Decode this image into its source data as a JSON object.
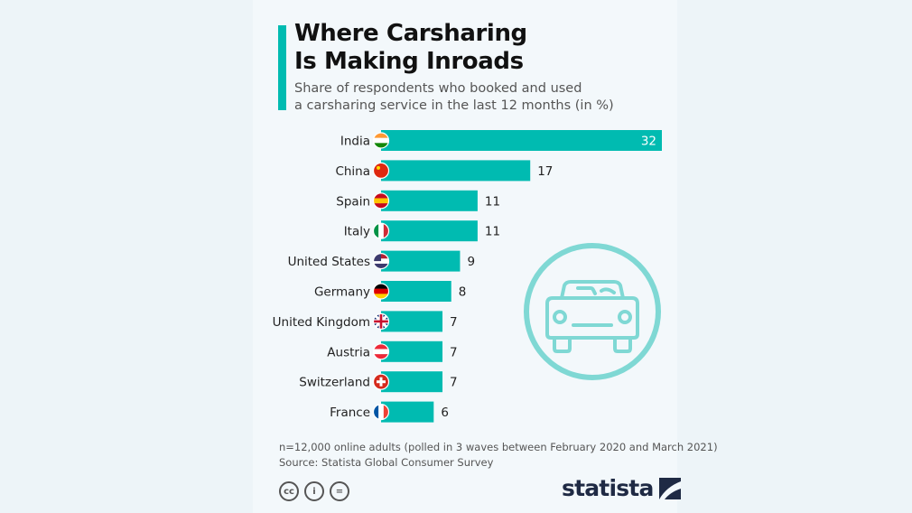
{
  "header": {
    "title_line1": "Where Carsharing",
    "title_line2": "Is Making Inroads",
    "subtitle_line1": "Share of respondents who booked and used",
    "subtitle_line2": "a carsharing service in the last 12 months (in %)"
  },
  "chart_data": {
    "type": "bar",
    "orientation": "horizontal",
    "title": "Where Carsharing Is Making Inroads",
    "subtitle": "Share of respondents who booked and used a carsharing service in the last 12 months (in %)",
    "categories": [
      "India",
      "China",
      "Spain",
      "Italy",
      "United States",
      "Germany",
      "United Kingdom",
      "Austria",
      "Switzerland",
      "France"
    ],
    "values": [
      32,
      17,
      11,
      11,
      9,
      8,
      7,
      7,
      7,
      6
    ],
    "xlim": [
      0,
      32
    ],
    "grid": false,
    "bar_color": "#00bbb1"
  },
  "footer": {
    "note": "n=12,000 online adults (polled in 3 waves between February 2020 and March 2021)",
    "source": "Source: Statista Global Consumer Survey",
    "license_icons": [
      "cc-icon",
      "by-icon",
      "nd-icon"
    ],
    "cc_glyphs": [
      "cc",
      "i",
      "="
    ],
    "brand": "statista"
  },
  "colors": {
    "accent": "#00bbb1",
    "car_icon": "#7fd8d4",
    "brand": "#1f2a44"
  }
}
